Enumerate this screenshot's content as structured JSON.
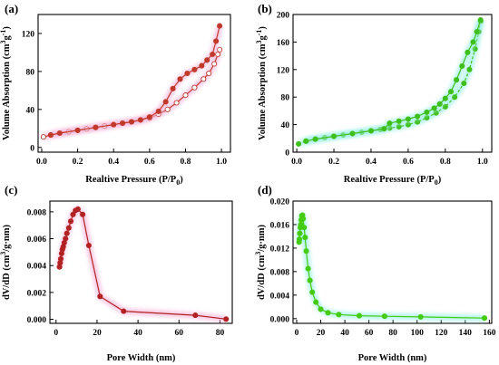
{
  "chart_data": [
    {
      "panel": "(a)",
      "type": "line",
      "xlabel": "Realtive Pressure (P/P",
      "xlabel_sub": "0",
      "xlabel_end": ")",
      "ylabel": "Volume Absorption (cm",
      "ylabel_sup1": "3",
      "ylabel_mid": "g",
      "ylabel_sup2": "-1",
      "ylabel_end": ")",
      "xlim": [
        -0.02,
        1.05
      ],
      "ylim": [
        -5,
        140
      ],
      "xticks": [
        {
          "v": 0.0,
          "label": "0.0"
        },
        {
          "v": 0.2,
          "label": "0.2"
        },
        {
          "v": 0.4,
          "label": "0.4"
        },
        {
          "v": 0.6,
          "label": "0.6"
        },
        {
          "v": 0.8,
          "label": "0.8"
        },
        {
          "v": 1.0,
          "label": "1.0"
        }
      ],
      "yticks": [
        {
          "v": 0,
          "label": "0"
        },
        {
          "v": 40,
          "label": "40"
        },
        {
          "v": 80,
          "label": "80"
        },
        {
          "v": 120,
          "label": "120"
        }
      ],
      "line_color": "#c0392b",
      "glow_color": "#f5b8dc",
      "series": [
        {
          "kind": "adsorption",
          "x": [
            0.01,
            0.05,
            0.1,
            0.15,
            0.2,
            0.25,
            0.3,
            0.35,
            0.4,
            0.45,
            0.5,
            0.55,
            0.6,
            0.65,
            0.7,
            0.75,
            0.8,
            0.85,
            0.9,
            0.93,
            0.96,
            0.98,
            0.99
          ],
          "y": [
            11,
            13,
            15,
            16.5,
            18,
            19.5,
            21,
            22.5,
            24,
            25.5,
            27,
            29,
            31,
            35,
            40,
            47,
            55,
            63,
            72,
            78,
            88,
            98,
            103
          ]
        },
        {
          "kind": "desorption",
          "x": [
            0.99,
            0.97,
            0.95,
            0.92,
            0.89,
            0.85,
            0.81,
            0.77,
            0.73,
            0.69,
            0.65,
            0.6,
            0.55,
            0.5,
            0.45,
            0.4,
            0.3,
            0.2,
            0.1,
            0.05
          ],
          "y": [
            128,
            112,
            98,
            92,
            86,
            82,
            78,
            72,
            62,
            48,
            38,
            32,
            29,
            27,
            25.5,
            24,
            21,
            18,
            15,
            13
          ]
        }
      ]
    },
    {
      "panel": "(b)",
      "type": "line",
      "xlabel": "Realtive Pressure (P/P",
      "xlabel_sub": "0",
      "xlabel_end": ")",
      "ylabel": "Volume Absorption (cm",
      "ylabel_sup1": "3",
      "ylabel_mid": "g",
      "ylabel_sup2": "-1",
      "ylabel_end": ")",
      "xlim": [
        -0.02,
        1.05
      ],
      "ylim": [
        0,
        200
      ],
      "xticks": [
        {
          "v": 0.0,
          "label": "0.0"
        },
        {
          "v": 0.2,
          "label": "0.2"
        },
        {
          "v": 0.4,
          "label": "0.4"
        },
        {
          "v": 0.6,
          "label": "0.6"
        },
        {
          "v": 0.8,
          "label": "0.8"
        },
        {
          "v": 1.0,
          "label": "1.0"
        }
      ],
      "yticks": [
        {
          "v": 0,
          "label": "0"
        },
        {
          "v": 40,
          "label": "40"
        },
        {
          "v": 80,
          "label": "80"
        },
        {
          "v": 120,
          "label": "120"
        },
        {
          "v": 160,
          "label": "160"
        },
        {
          "v": 200,
          "label": "200"
        }
      ],
      "line_color": "#3fbf1a",
      "glow_color": "#9ef0e6",
      "series": [
        {
          "kind": "adsorption",
          "x": [
            0.01,
            0.05,
            0.1,
            0.15,
            0.2,
            0.25,
            0.3,
            0.35,
            0.4,
            0.45,
            0.5,
            0.55,
            0.6,
            0.65,
            0.7,
            0.75,
            0.8,
            0.85,
            0.9,
            0.93,
            0.96,
            0.98,
            0.99
          ],
          "y": [
            12,
            16,
            19,
            21,
            23,
            25,
            27,
            29,
            31,
            33,
            35,
            37,
            40,
            44,
            50,
            57,
            66,
            80,
            100,
            120,
            150,
            175,
            190
          ]
        },
        {
          "kind": "desorption",
          "x": [
            0.99,
            0.97,
            0.95,
            0.92,
            0.89,
            0.86,
            0.83,
            0.8,
            0.77,
            0.74,
            0.7,
            0.65,
            0.6,
            0.55,
            0.5,
            0.47,
            0.4,
            0.3,
            0.2,
            0.1,
            0.05
          ],
          "y": [
            192,
            175,
            160,
            145,
            125,
            105,
            88,
            78,
            70,
            64,
            58,
            52,
            48,
            45,
            42,
            34,
            31,
            27,
            23,
            19,
            16
          ]
        }
      ]
    },
    {
      "panel": "(c)",
      "type": "line",
      "xlabel": "Pore Width (nm)",
      "ylabel": "dV/dD  (cm",
      "ylabel_sup1": "3",
      "ylabel_mid": "/g·nm)",
      "xlim": [
        -3,
        86
      ],
      "ylim": [
        -0.0003,
        0.0088
      ],
      "xticks": [
        {
          "v": 0,
          "label": "0"
        },
        {
          "v": 20,
          "label": "20"
        },
        {
          "v": 40,
          "label": "40"
        },
        {
          "v": 60,
          "label": "60"
        },
        {
          "v": 80,
          "label": "80"
        }
      ],
      "yticks": [
        {
          "v": 0.0,
          "label": "0.000"
        },
        {
          "v": 0.002,
          "label": "0.002"
        },
        {
          "v": 0.004,
          "label": "0.004"
        },
        {
          "v": 0.006,
          "label": "0.006"
        },
        {
          "v": 0.008,
          "label": "0.008"
        }
      ],
      "line_color": "#b22222",
      "glow_color": "#f5b8dc",
      "series": [
        {
          "kind": "distribution",
          "x": [
            1.7,
            2.0,
            2.3,
            2.7,
            3.1,
            3.5,
            4.0,
            4.6,
            5.3,
            6.2,
            7.2,
            8.3,
            9.5,
            10.7,
            13,
            16,
            21.5,
            33,
            68,
            83
          ],
          "y": [
            0.0039,
            0.0042,
            0.0045,
            0.0049,
            0.0052,
            0.0054,
            0.0057,
            0.006,
            0.0064,
            0.0068,
            0.0073,
            0.0078,
            0.0081,
            0.0082,
            0.0078,
            0.0055,
            0.0017,
            0.0006,
            0.0003,
            2e-05
          ]
        }
      ]
    },
    {
      "panel": "(d)",
      "type": "line",
      "xlabel": "Pore Width (nm)",
      "ylabel": "dV/dD  (cm",
      "ylabel_sup1": "3",
      "ylabel_mid": "/g·nm)",
      "xlim": [
        -3,
        162
      ],
      "ylim": [
        -0.0008,
        0.02
      ],
      "xticks": [
        {
          "v": 0,
          "label": "0"
        },
        {
          "v": 20,
          "label": "20"
        },
        {
          "v": 40,
          "label": "40"
        },
        {
          "v": 60,
          "label": "60"
        },
        {
          "v": 80,
          "label": "80"
        },
        {
          "v": 100,
          "label": "100"
        },
        {
          "v": 120,
          "label": "120"
        },
        {
          "v": 140,
          "label": "140"
        },
        {
          "v": 160,
          "label": "160"
        }
      ],
      "yticks": [
        {
          "v": 0.0,
          "label": "0.000"
        },
        {
          "v": 0.004,
          "label": "0.004"
        },
        {
          "v": 0.008,
          "label": "0.008"
        },
        {
          "v": 0.012,
          "label": "0.012"
        },
        {
          "v": 0.016,
          "label": "0.016"
        },
        {
          "v": 0.02,
          "label": "0.020"
        }
      ],
      "line_color": "#44cc11",
      "glow_color": "#9ef0e6",
      "series": [
        {
          "kind": "distribution",
          "x": [
            2.0,
            2.3,
            2.6,
            3.0,
            3.4,
            3.8,
            4.3,
            4.8,
            5.4,
            6.2,
            7.0,
            8.0,
            9.5,
            11,
            13,
            16,
            20,
            26,
            35,
            52,
            73,
            103,
            156
          ],
          "y": [
            0.013,
            0.0135,
            0.0145,
            0.0155,
            0.016,
            0.0168,
            0.0175,
            0.0176,
            0.017,
            0.0155,
            0.0138,
            0.0115,
            0.0085,
            0.0065,
            0.0045,
            0.0028,
            0.0016,
            0.001,
            0.0007,
            0.0005,
            0.0004,
            0.0003,
            0.0001
          ]
        }
      ]
    }
  ]
}
